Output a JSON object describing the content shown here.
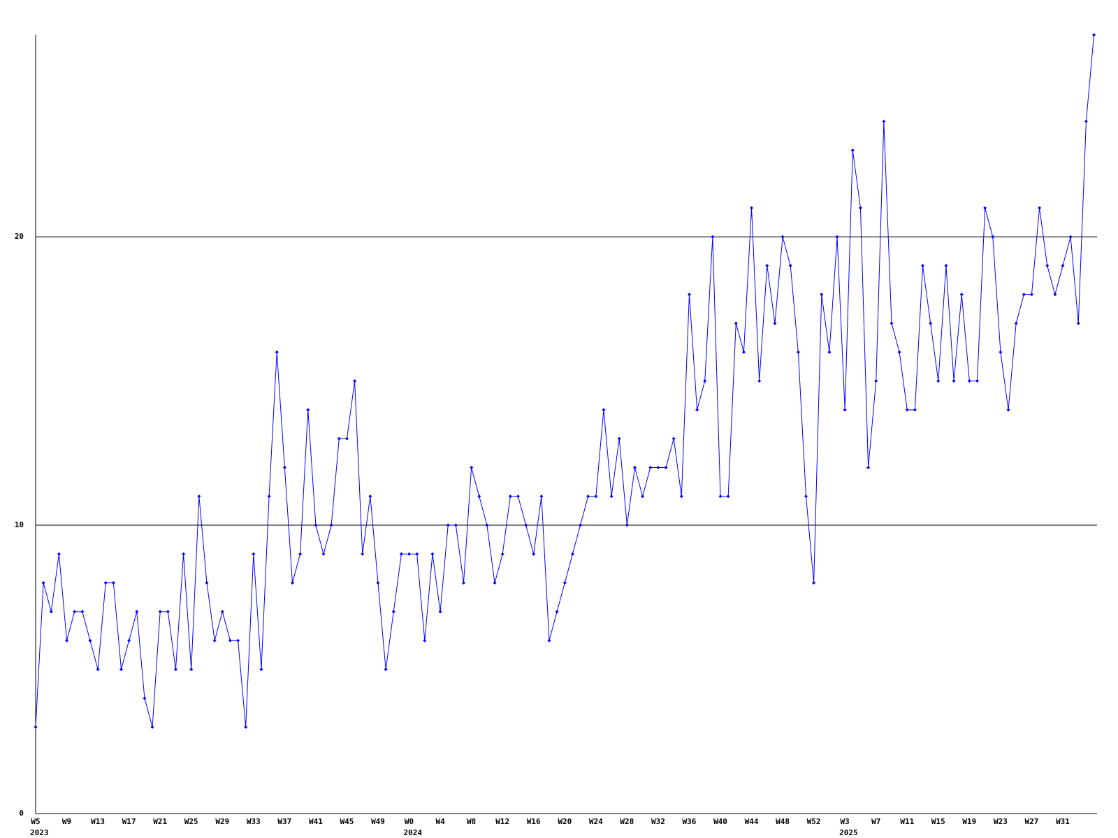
{
  "chart_data": {
    "type": "line",
    "color": "#0000ff",
    "grid_color": "#000000",
    "ylim": [
      0,
      27
    ],
    "yticks": [
      0,
      10,
      20
    ],
    "grid": true,
    "categories": [
      "W5",
      null,
      null,
      null,
      "W9",
      null,
      null,
      null,
      "W13",
      null,
      null,
      null,
      "W17",
      null,
      null,
      null,
      "W21",
      null,
      null,
      null,
      "W25",
      null,
      null,
      null,
      "W29",
      null,
      null,
      null,
      "W33",
      null,
      null,
      null,
      "W37",
      null,
      null,
      null,
      "W41",
      null,
      null,
      null,
      "W45",
      null,
      null,
      null,
      "W49",
      null,
      null,
      null,
      "W0",
      null,
      null,
      null,
      "W4",
      null,
      null,
      null,
      "W8",
      null,
      null,
      null,
      "W12",
      null,
      null,
      null,
      "W16",
      null,
      null,
      null,
      "W20",
      null,
      null,
      null,
      "W24",
      null,
      null,
      null,
      "W28",
      null,
      null,
      null,
      "W32",
      null,
      null,
      null,
      "W36",
      null,
      null,
      null,
      "W40",
      null,
      null,
      null,
      "W44",
      null,
      null,
      null,
      "W48",
      null,
      null,
      null,
      "W52",
      null,
      null,
      null,
      "W3",
      null,
      null,
      null,
      "W7",
      null,
      null,
      null,
      "W11",
      null,
      null,
      null,
      "W15",
      null,
      null,
      null,
      "W19",
      null,
      null,
      null,
      "W23",
      null,
      null,
      null,
      "W27",
      null,
      null,
      null,
      "W31",
      null,
      null,
      null,
      null
    ],
    "category_years": [
      "2023",
      null,
      null,
      null,
      null,
      null,
      null,
      null,
      null,
      null,
      null,
      null,
      null,
      null,
      null,
      null,
      null,
      null,
      null,
      null,
      null,
      null,
      null,
      null,
      null,
      null,
      null,
      null,
      null,
      null,
      null,
      null,
      null,
      null,
      null,
      null,
      null,
      null,
      null,
      null,
      null,
      null,
      null,
      null,
      null,
      null,
      null,
      null,
      "2024",
      null,
      null,
      null,
      null,
      null,
      null,
      null,
      null,
      null,
      null,
      null,
      null,
      null,
      null,
      null,
      null,
      null,
      null,
      null,
      null,
      null,
      null,
      null,
      null,
      null,
      null,
      null,
      null,
      null,
      null,
      null,
      null,
      null,
      null,
      null,
      null,
      null,
      null,
      null,
      null,
      null,
      null,
      null,
      null,
      null,
      null,
      null,
      null,
      null,
      null,
      null,
      null,
      null,
      null,
      null,
      "2025",
      null,
      null,
      null,
      null,
      null,
      null,
      null,
      null,
      null,
      null,
      null,
      null,
      null,
      null,
      null,
      null,
      null,
      null,
      null,
      null,
      null,
      null,
      null,
      null,
      null,
      null,
      null,
      null,
      null,
      null,
      null,
      null
    ],
    "values": [
      3,
      8,
      7,
      9,
      6,
      7,
      7,
      6,
      5,
      8,
      8,
      5,
      6,
      7,
      4,
      3,
      7,
      7,
      5,
      9,
      5,
      11,
      8,
      6,
      7,
      6,
      6,
      3,
      9,
      5,
      11,
      16,
      12,
      8,
      9,
      14,
      10,
      9,
      10,
      13,
      13,
      15,
      9,
      11,
      8,
      5,
      7,
      9,
      9,
      9,
      6,
      9,
      7,
      10,
      10,
      8,
      12,
      11,
      10,
      8,
      9,
      11,
      11,
      10,
      9,
      11,
      6,
      7,
      8,
      9,
      10,
      11,
      11,
      14,
      11,
      13,
      10,
      12,
      11,
      12,
      12,
      12,
      13,
      11,
      18,
      14,
      15,
      20,
      11,
      11,
      17,
      16,
      21,
      15,
      19,
      17,
      20,
      19,
      16,
      11,
      8,
      18,
      16,
      20,
      14,
      23,
      21,
      12,
      15,
      24,
      17,
      16,
      14,
      14,
      19,
      17,
      15,
      19,
      15,
      18,
      15,
      15,
      21,
      20,
      16,
      14,
      17,
      18,
      18,
      21,
      19,
      18,
      19,
      20,
      17,
      24,
      27
    ]
  }
}
